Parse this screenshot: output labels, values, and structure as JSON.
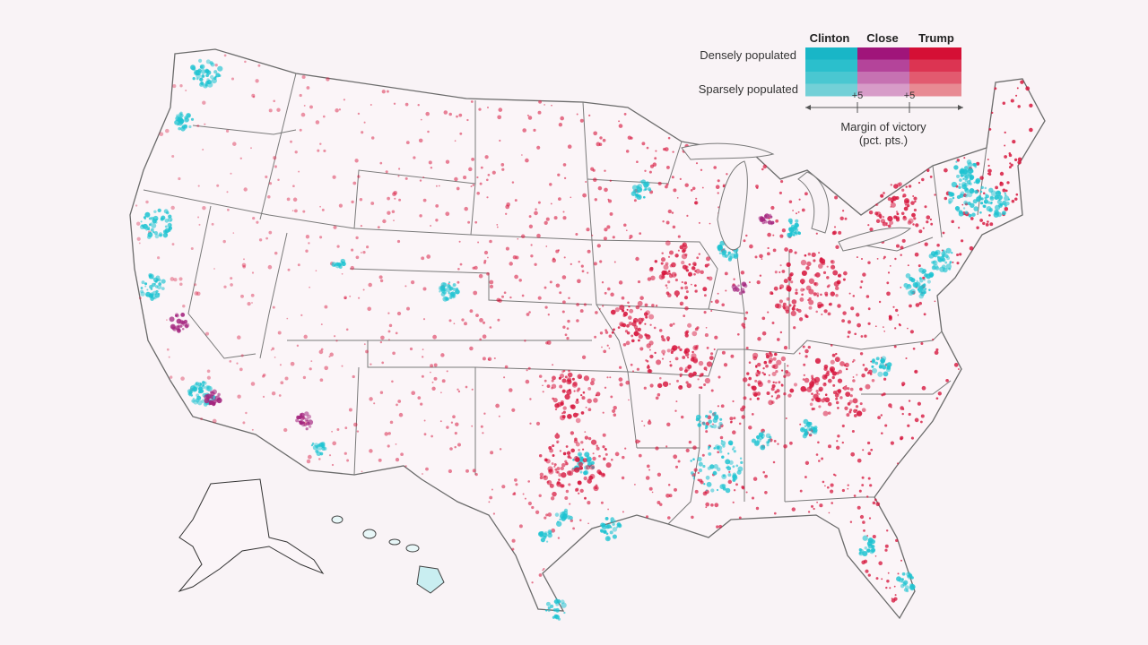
{
  "legend": {
    "headers": {
      "clinton": "Clinton",
      "close": "Close",
      "trump": "Trump"
    },
    "densely_label": "Densely populated",
    "sparsely_label": "Sparsely populated",
    "tick_left": "+5",
    "tick_right": "+5",
    "margin_title": "Margin of victory",
    "margin_units": "(pct. pts.)"
  },
  "colors": {
    "background": "#f9f3f6",
    "clinton": "#1ec3d1",
    "close": "#a3237d",
    "trump": "#d6143b",
    "border": "#6b6b6b",
    "clinton_ramp": [
      "#19b6c7",
      "#2bbfcc",
      "#4ac7d1",
      "#73d0d7"
    ],
    "close_ramp": [
      "#a0157a",
      "#b4449a",
      "#c672b2",
      "#d79cc8"
    ],
    "trump_ramp": [
      "#d50f35",
      "#dc3452",
      "#e25a6f",
      "#e88a93"
    ]
  }
}
